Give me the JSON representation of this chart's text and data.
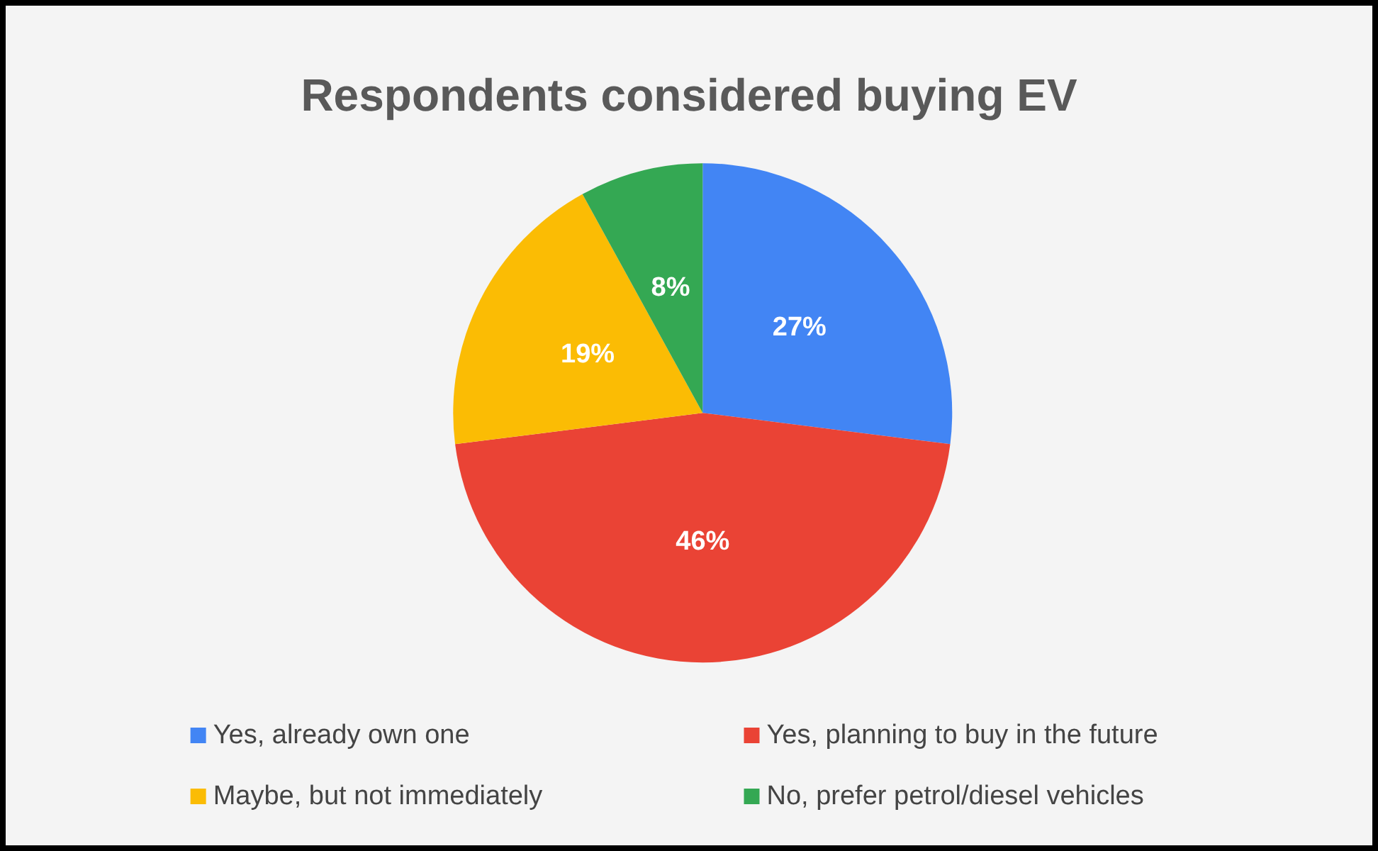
{
  "chart_data": {
    "type": "pie",
    "title": "Respondents considered buying EV",
    "categories": [
      "Yes, already own one",
      "Yes, planning to buy in the future",
      "Maybe, but not immediately",
      "No, prefer petrol/diesel vehicles"
    ],
    "values": [
      27,
      46,
      19,
      8
    ],
    "value_labels": [
      "27%",
      "46%",
      "19%",
      "8%"
    ],
    "colors": [
      "#4285f4",
      "#ea4335",
      "#fbbc04",
      "#34a853"
    ],
    "legend": "bottom"
  }
}
